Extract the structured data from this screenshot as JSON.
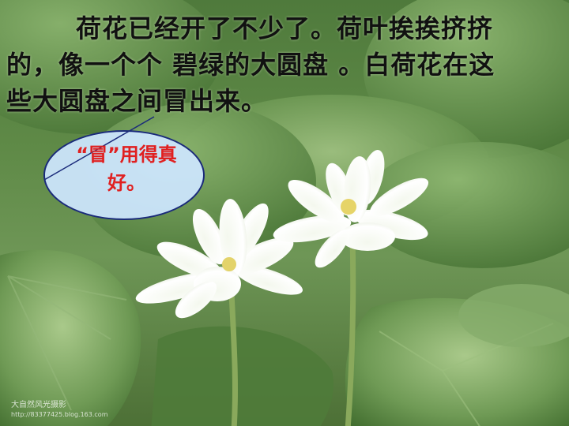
{
  "passage": {
    "line1": "荷花已经开了不少了。荷叶挨挨挤挤",
    "line2": "的，像一个个 碧绿的大圆盘 。白荷花在这",
    "line3": "些大圆盘之间冒出来。"
  },
  "bubble": {
    "line1": "“冒”用得真",
    "line2": "好。"
  },
  "watermark": {
    "line1": "大自然风光摄影",
    "line2": "http://83377425.blog.163.com"
  },
  "colors": {
    "passage_text": "#111111",
    "bubble_text": "#e02020",
    "bubble_fill": "#cde6ff",
    "bubble_border": "#1a2a7a",
    "leaf_green": "#5f8a47"
  }
}
